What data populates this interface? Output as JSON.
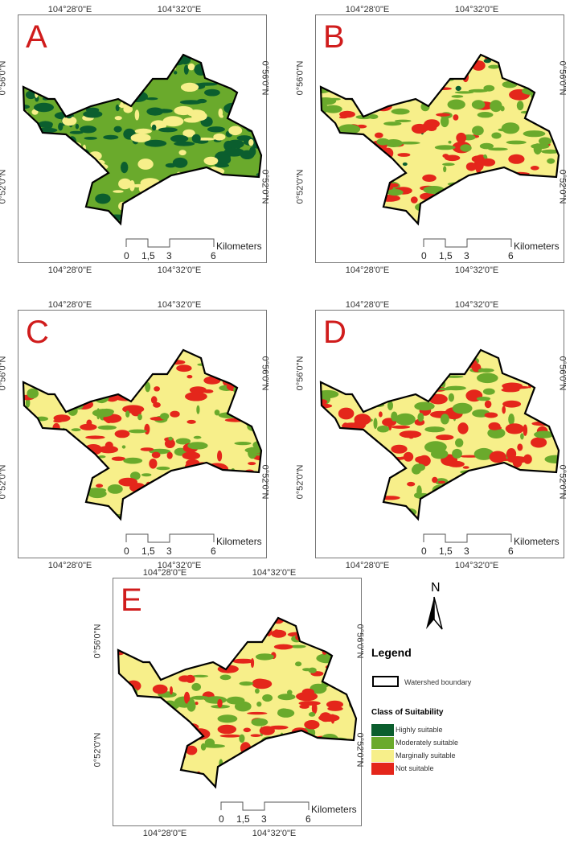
{
  "panels": [
    {
      "id": "A",
      "letter": "A"
    },
    {
      "id": "B",
      "letter": "B"
    },
    {
      "id": "C",
      "letter": "C"
    },
    {
      "id": "D",
      "letter": "D"
    },
    {
      "id": "E",
      "letter": "E"
    }
  ],
  "axes": {
    "lon_ticks": [
      "104°28'0\"E",
      "104°32'0\"E"
    ],
    "lat_ticks": [
      "0°56'0\"N",
      "0°52'0\"N"
    ]
  },
  "scale_bar": {
    "ticks": [
      "0",
      "1,5",
      "3",
      "6"
    ],
    "unit": "Kilometers"
  },
  "north_arrow": {
    "label": "N"
  },
  "legend": {
    "title": "Legend",
    "boundary_label": "Watershed boundary",
    "class_title": "Class of Suitability",
    "classes": [
      {
        "label": "Highly suitable",
        "color": "#0b5e2e"
      },
      {
        "label": "Moderately suitable",
        "color": "#6aaa2c"
      },
      {
        "label": "Marginally suitable",
        "color": "#f7ef8a"
      },
      {
        "label": "Not suitable",
        "color": "#e4261b"
      }
    ]
  }
}
